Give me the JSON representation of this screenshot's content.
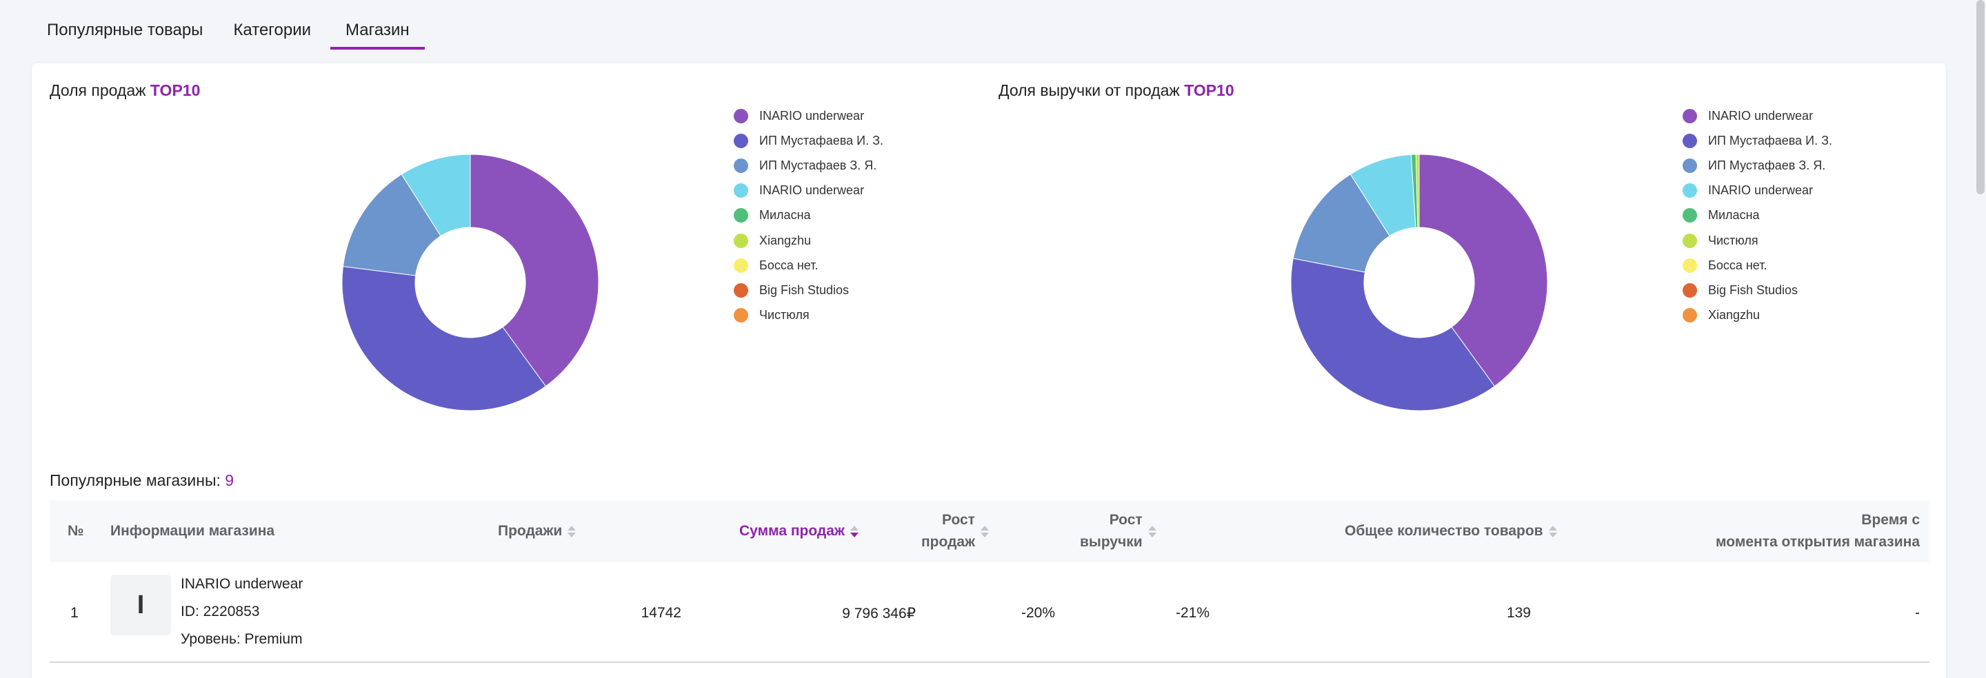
{
  "tabs": [
    {
      "label": "Популярные товары"
    },
    {
      "label": "Категории"
    },
    {
      "label": "Магазин"
    }
  ],
  "chart_data": [
    {
      "type": "pie",
      "title_prefix": "Доля продаж",
      "title_accent": "TOP10",
      "categories": [
        "INARIO underwear",
        "ИП Мустафаева И. З.",
        "ИП Мустафаев З. Я.",
        "INARIO underwear",
        "Миласна",
        "Xiangzhu",
        "Босса нет.",
        "Big Fish Studios",
        "Чистюля"
      ],
      "values": [
        40.0,
        37.0,
        14.0,
        9.0,
        0,
        0,
        0,
        0,
        0
      ],
      "colors": [
        "#8b52bd",
        "#625dc6",
        "#6b95cc",
        "#72d6ec",
        "#4fbf7a",
        "#bfe04a",
        "#f9ee6b",
        "#de6532",
        "#f0923e"
      ],
      "legend": "right"
    },
    {
      "type": "pie",
      "title_prefix": "Доля выручки от продаж",
      "title_accent": "TOP10",
      "categories": [
        "INARIO underwear",
        "ИП Мустафаева И. З.",
        "ИП Мустафаев З. Я.",
        "INARIO underwear",
        "Миласна",
        "Чистюля",
        "Босса нет.",
        "Big Fish Studios",
        "Xiangzhu"
      ],
      "values": [
        40.0,
        38.0,
        13.0,
        8.0,
        0.6,
        0.4,
        0,
        0,
        0
      ],
      "colors": [
        "#8b52bd",
        "#625dc6",
        "#6b95cc",
        "#72d6ec",
        "#4fbf7a",
        "#bfe04a",
        "#f9ee6b",
        "#de6532",
        "#f0923e"
      ],
      "legend": "right"
    }
  ],
  "stores_section": {
    "label": "Популярные магазины:",
    "count": "9"
  },
  "table": {
    "headers": {
      "num": "№",
      "info": "Информации магазина",
      "sales": "Продажи",
      "sum": "Сумма продаж",
      "growth_sales_1": "Рост",
      "growth_sales_2": "продаж",
      "growth_rev_1": "Рост",
      "growth_rev_2": "выручки",
      "total": "Общее количество товаров",
      "time_1": "Время с",
      "time_2": "момента открытия магазина"
    },
    "rows": [
      {
        "num": "1",
        "avatar": "I",
        "name": "INARIO underwear",
        "id": "ID: 2220853",
        "level": "Уровень: Premium",
        "sales": "14742",
        "sum": "9 796 346₽",
        "growth_sales": "-20%",
        "growth_rev": "-21%",
        "total": "139",
        "time": "-"
      }
    ]
  }
}
